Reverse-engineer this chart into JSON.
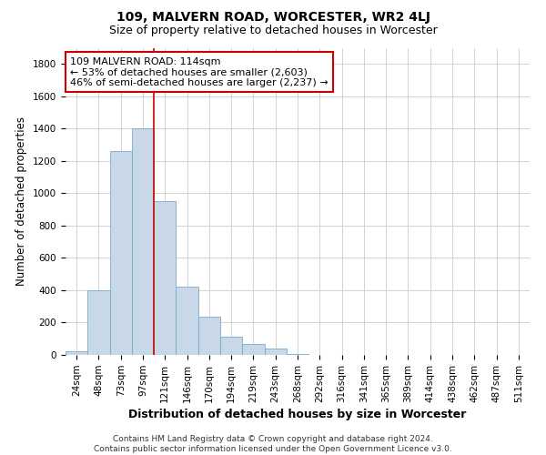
{
  "title": "109, MALVERN ROAD, WORCESTER, WR2 4LJ",
  "subtitle": "Size of property relative to detached houses in Worcester",
  "xlabel": "Distribution of detached houses by size in Worcester",
  "ylabel": "Number of detached properties",
  "categories": [
    "24sqm",
    "48sqm",
    "73sqm",
    "97sqm",
    "121sqm",
    "146sqm",
    "170sqm",
    "194sqm",
    "219sqm",
    "243sqm",
    "268sqm",
    "292sqm",
    "316sqm",
    "341sqm",
    "365sqm",
    "389sqm",
    "414sqm",
    "438sqm",
    "462sqm",
    "487sqm",
    "511sqm"
  ],
  "values": [
    25,
    400,
    1260,
    1400,
    950,
    425,
    235,
    110,
    65,
    40,
    5,
    2,
    1,
    0,
    0,
    0,
    0,
    0,
    0,
    0,
    0
  ],
  "bar_color": "#c8d8e8",
  "bar_edge_color": "#7aaac8",
  "property_line_color": "#cc0000",
  "annotation_line1": "109 MALVERN ROAD: 114sqm",
  "annotation_line2": "← 53% of detached houses are smaller (2,603)",
  "annotation_line3": "46% of semi-detached houses are larger (2,237) →",
  "annotation_box_color": "#ffffff",
  "annotation_box_edge_color": "#cc0000",
  "ylim": [
    0,
    1900
  ],
  "yticks": [
    0,
    200,
    400,
    600,
    800,
    1000,
    1200,
    1400,
    1600,
    1800
  ],
  "footnote": "Contains HM Land Registry data © Crown copyright and database right 2024.\nContains public sector information licensed under the Open Government Licence v3.0.",
  "bg_color": "#ffffff",
  "grid_color": "#cccccc",
  "title_fontsize": 10,
  "subtitle_fontsize": 9,
  "axis_label_fontsize": 8.5,
  "tick_fontsize": 7.5,
  "annotation_fontsize": 8,
  "footnote_fontsize": 6.5
}
